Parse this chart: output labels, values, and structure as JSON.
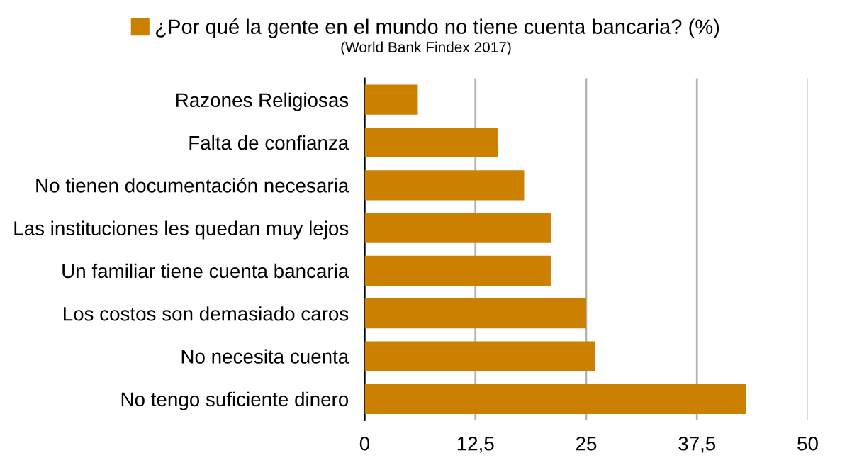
{
  "chart_data": {
    "type": "bar",
    "orientation": "horizontal",
    "subtitle": "(World Bank Findex 2017)",
    "categories": [
      "Razones Religiosas",
      "Falta de confianza",
      "No tienen documentación necesaria",
      "Las instituciones les quedan muy lejos",
      "Un familiar tiene cuenta bancaria",
      "Los costos son demasiado caros",
      "No necesita cuenta",
      "No tengo suficiente dinero"
    ],
    "series": [
      {
        "name": "¿Por qué la gente en el mundo no tiene cuenta bancaria? (%)",
        "color": "#cc8000",
        "values": [
          6,
          15,
          18,
          21,
          21,
          25,
          26,
          43
        ]
      }
    ],
    "xlim": [
      0,
      50
    ],
    "xticks": [
      0,
      {
        "value": 12.5,
        "label": "12,5"
      },
      25,
      {
        "value": 37.5,
        "label": "37,5"
      },
      50
    ],
    "grid": "x",
    "legend": "top"
  }
}
